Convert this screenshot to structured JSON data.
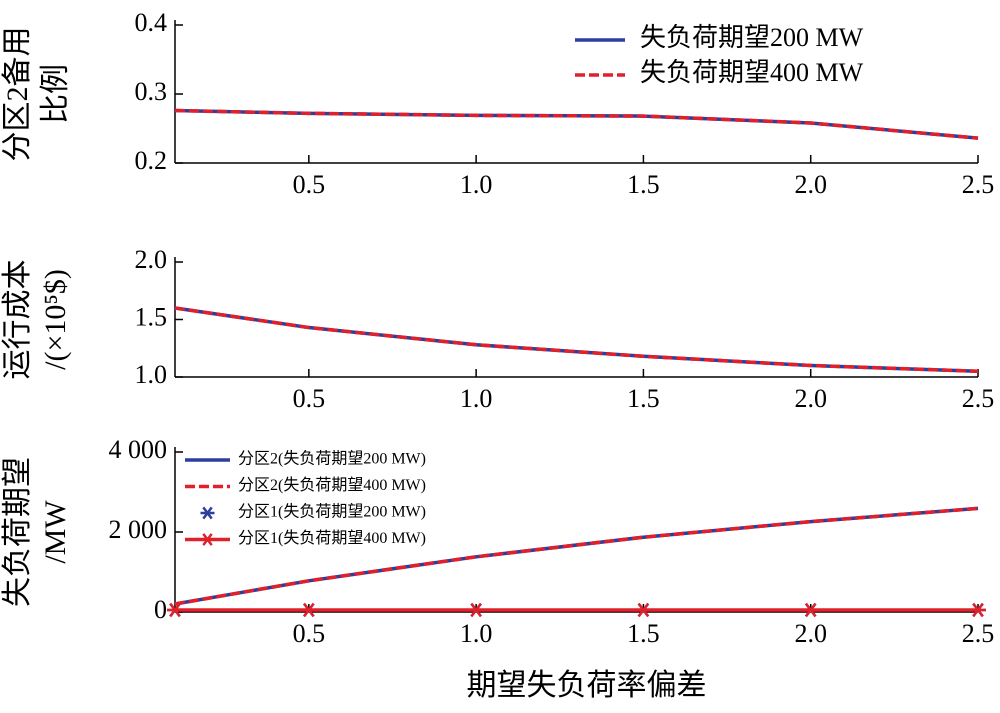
{
  "chart_data": [
    {
      "type": "line",
      "ylabel": [
        "分区2备用",
        "比例"
      ],
      "x": [
        0.1,
        0.5,
        1.0,
        1.5,
        2.0,
        2.5
      ],
      "series": [
        {
          "name": "失负荷期望200 MW",
          "color": "#2b3f9e",
          "values": [
            0.276,
            0.272,
            0.269,
            0.268,
            0.258,
            0.236
          ]
        },
        {
          "name": "失负荷期望400 MW",
          "color": "#e0202a",
          "dash": true,
          "values": [
            0.276,
            0.272,
            0.269,
            0.268,
            0.258,
            0.236
          ]
        }
      ],
      "xlim": [
        0.1,
        2.5
      ],
      "xticks": [
        0.5,
        {
          "value": 1,
          "label": "1.0"
        },
        1.5,
        {
          "value": 2,
          "label": "2.0"
        },
        2.5
      ],
      "ylim": [
        0.2,
        0.4
      ],
      "yticks": [
        0.2,
        0.3,
        0.4
      ],
      "legend": "upper right"
    },
    {
      "type": "line",
      "ylabel": [
        "运行成本",
        "/(×10⁵$)"
      ],
      "x": [
        0.1,
        0.5,
        1.0,
        1.5,
        2.0,
        2.5
      ],
      "series": [
        {
          "color": "#2b3f9e",
          "values": [
            1.6,
            1.43,
            1.28,
            1.18,
            1.1,
            1.05
          ]
        },
        {
          "color": "#e0202a",
          "dash": true,
          "values": [
            1.6,
            1.43,
            1.28,
            1.18,
            1.1,
            1.05
          ]
        }
      ],
      "xlim": [
        0.1,
        2.5
      ],
      "xticks": [
        0.5,
        {
          "value": 1,
          "label": "1.0"
        },
        1.5,
        {
          "value": 2,
          "label": "2.0"
        },
        2.5
      ],
      "ylim": [
        1,
        2
      ],
      "yticks": [
        {
          "value": 1,
          "label": "1.0"
        },
        1.5,
        {
          "value": 2,
          "label": "2.0"
        }
      ]
    },
    {
      "type": "line",
      "ylabel": [
        "失负荷期望",
        "/MW"
      ],
      "xlabel": "期望失负荷率偏差",
      "x": [
        0.1,
        0.5,
        1.0,
        1.5,
        2.0,
        2.5
      ],
      "series": [
        {
          "name": "分区2(失负荷期望200 MW)",
          "color": "#2b3f9e",
          "values": [
            200,
            780,
            1380,
            1870,
            2260,
            2590
          ]
        },
        {
          "name": "分区2(失负荷期望400 MW)",
          "color": "#e0202a",
          "dash": true,
          "values": [
            200,
            780,
            1380,
            1870,
            2260,
            2590
          ]
        },
        {
          "name": "分区1(失负荷期望200 MW)",
          "color": "#2b3f9e",
          "marker": "*",
          "line": false,
          "values": [
            50,
            50,
            50,
            50,
            50,
            50
          ]
        },
        {
          "name": "分区1(失负荷期望400 MW)",
          "color": "#e0202a",
          "marker": "*",
          "values": [
            50,
            50,
            50,
            50,
            50,
            50
          ]
        }
      ],
      "xlim": [
        0.1,
        2.5
      ],
      "xticks": [
        0.5,
        {
          "value": 1,
          "label": "1.0"
        },
        1.5,
        {
          "value": 2,
          "label": "2.0"
        },
        2.5
      ],
      "ylim": [
        0,
        4000
      ],
      "yticks": [
        0,
        {
          "value": 2000,
          "label": "2 000"
        },
        {
          "value": 4000,
          "label": "4 000"
        }
      ],
      "legend": "upper left"
    }
  ]
}
